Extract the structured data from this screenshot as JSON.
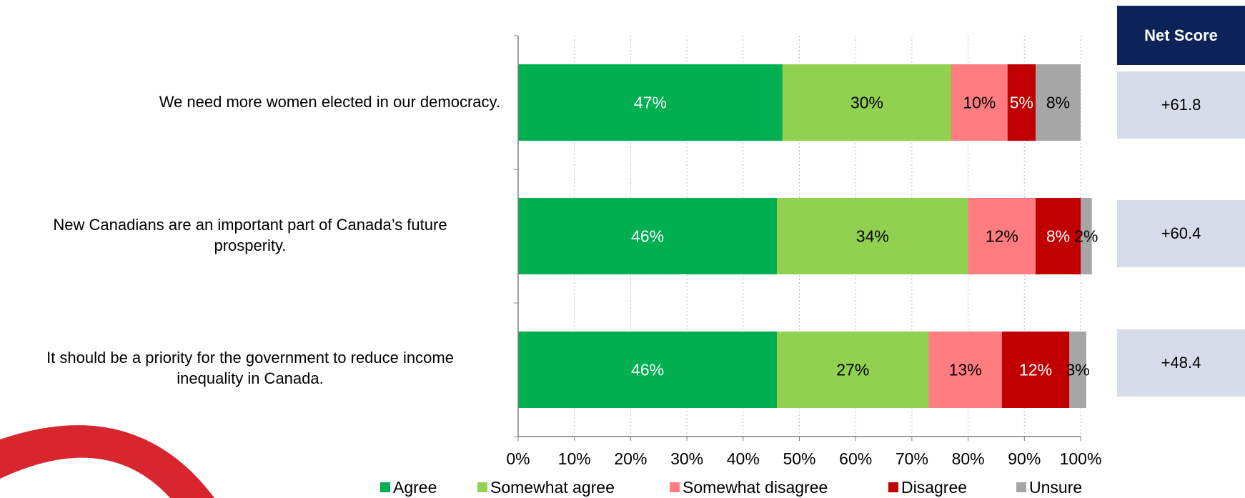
{
  "chart_data": {
    "type": "bar",
    "orientation": "horizontal",
    "stacked": true,
    "categories": [
      "We need more women elected in our democracy.",
      "New Canadians are an important part of Canada’s future prosperity.",
      "It should be a priority for the government to reduce income inequality in Canada."
    ],
    "category_lines": [
      [
        "We need more women elected in our democracy."
      ],
      [
        "New Canadians are an important part of Canada’s future",
        "prosperity."
      ],
      [
        "It should be a priority for the government to reduce income",
        "inequality in Canada."
      ]
    ],
    "series": [
      {
        "name": "Agree",
        "color": "#00b050",
        "label_color": "#ffffff",
        "values": [
          47,
          46,
          46
        ]
      },
      {
        "name": "Somewhat agree",
        "color": "#92d050",
        "label_color": "#000000",
        "values": [
          30,
          34,
          27
        ]
      },
      {
        "name": "Somewhat disagree",
        "color": "#ff7c80",
        "label_color": "#000000",
        "values": [
          10,
          12,
          13
        ]
      },
      {
        "name": "Disagree",
        "color": "#c00000",
        "label_color": "#ffffff",
        "values": [
          5,
          8,
          12
        ]
      },
      {
        "name": "Unsure",
        "color": "#a6a6a6",
        "label_color": "#000000",
        "values": [
          8,
          2,
          3
        ]
      }
    ],
    "data_labels": [
      [
        "47%",
        "30%",
        "10%",
        "5%",
        "8%"
      ],
      [
        "46%",
        "34%",
        "12%",
        "8%",
        "2%"
      ],
      [
        "46%",
        "27%",
        "13%",
        "12%",
        "3%"
      ]
    ],
    "x_ticks": [
      "0%",
      "10%",
      "20%",
      "30%",
      "40%",
      "50%",
      "60%",
      "70%",
      "80%",
      "90%",
      "100%"
    ],
    "xlim": [
      0,
      100
    ],
    "grid": "vertical-dotted",
    "legend": "bottom",
    "title": "",
    "xlabel": "",
    "ylabel": ""
  },
  "net_score": {
    "header": "Net Score",
    "values": [
      "+61.8",
      "+60.4",
      "+48.4"
    ],
    "header_color": "#0c2359",
    "box_color": "#d6dce9"
  },
  "logo": {
    "color": "#d7262e"
  }
}
